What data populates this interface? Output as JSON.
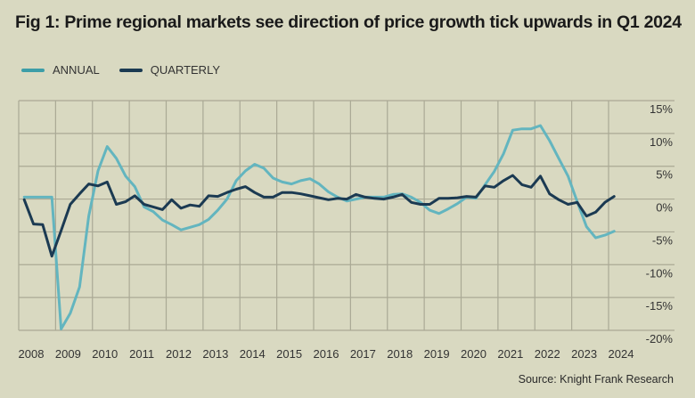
{
  "title": "Fig 1: Prime regional markets see direction of price growth tick upwards in Q1 2024",
  "source": "Source: Knight Frank Research",
  "colors": {
    "background": "#d9d9c1",
    "grid": "#aaa995",
    "annual": "#63b5bf",
    "annual_legend": "#3d9ea8",
    "quarterly": "#1b3a52"
  },
  "chart_data": {
    "type": "line",
    "title": "Fig 1: Prime regional markets see direction of price growth tick upwards in Q1 2024",
    "xlabel": "",
    "ylabel": "",
    "ylim": [
      -20,
      15
    ],
    "xlim": [
      2008,
      2024
    ],
    "grid": true,
    "legend_position": "top-left",
    "x_ticks": [
      "2008",
      "2009",
      "2010",
      "2011",
      "2012",
      "2013",
      "2014",
      "2015",
      "2016",
      "2017",
      "2018",
      "2019",
      "2020",
      "2021",
      "2022",
      "2023",
      "2024"
    ],
    "y_ticks": [
      "15%",
      "10%",
      "5%",
      "0%",
      "-5%",
      "-10%",
      "-15%",
      "-20%"
    ],
    "y_tick_values": [
      15,
      10,
      5,
      0,
      -5,
      -10,
      -15,
      -20
    ],
    "x_start": "Q1 2008",
    "x_step": "quarter",
    "series": [
      {
        "name": "ANNUAL",
        "color": "#63b5bf",
        "values": [
          0.3,
          0.3,
          0.3,
          0.3,
          -19.8,
          -17.4,
          -13.4,
          -2.6,
          4.3,
          8.0,
          6.2,
          3.5,
          1.9,
          -1.2,
          -1.9,
          -3.2,
          -3.9,
          -4.7,
          -4.3,
          -3.9,
          -3.1,
          -1.7,
          0.0,
          2.8,
          4.3,
          5.3,
          4.7,
          3.2,
          2.6,
          2.3,
          2.8,
          3.1,
          2.3,
          1.1,
          0.3,
          -0.3,
          0.0,
          0.3,
          0.3,
          0.3,
          0.7,
          0.8,
          0.3,
          -0.5,
          -1.7,
          -2.2,
          -1.5,
          -0.7,
          0.3,
          0.1,
          2.2,
          4.2,
          6.9,
          10.5,
          10.7,
          10.7,
          11.2,
          8.9,
          6.2,
          3.5,
          -0.4,
          -4.2,
          -5.9,
          -5.5,
          -4.9
        ]
      },
      {
        "name": "QUARTERLY",
        "color": "#1b3a52",
        "values": [
          -0.1,
          -3.8,
          -3.9,
          -8.7,
          -4.8,
          -0.8,
          0.8,
          2.3,
          2.0,
          2.6,
          -0.8,
          -0.4,
          0.5,
          -0.8,
          -1.2,
          -1.6,
          -0.1,
          -1.4,
          -0.9,
          -1.1,
          0.5,
          0.4,
          1.0,
          1.5,
          1.9,
          1.0,
          0.3,
          0.3,
          1.0,
          1.0,
          0.8,
          0.5,
          0.2,
          -0.1,
          0.1,
          0.0,
          0.7,
          0.3,
          0.1,
          0.0,
          0.3,
          0.7,
          -0.5,
          -0.8,
          -0.8,
          0.1,
          0.1,
          0.2,
          0.4,
          0.3,
          2.0,
          1.8,
          2.8,
          3.6,
          2.2,
          1.8,
          3.5,
          0.8,
          -0.1,
          -0.8,
          -0.5,
          -2.6,
          -2.0,
          -0.5,
          0.4
        ]
      }
    ]
  }
}
